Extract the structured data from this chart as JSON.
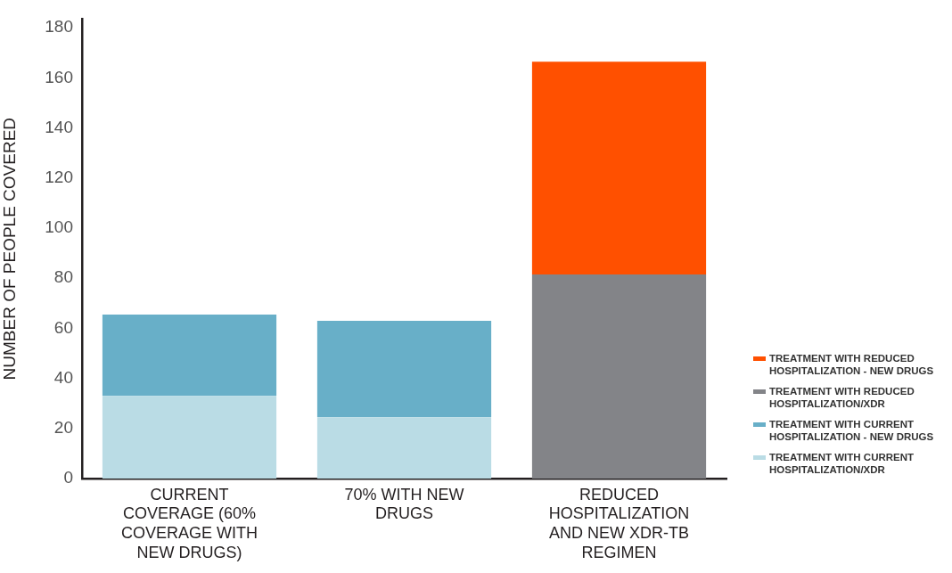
{
  "chart_data": {
    "type": "bar",
    "ylabel": "NUMBER OF PEOPLE COVERED",
    "categories": [
      "CURRENT COVERAGE (60% COVERAGE WITH NEW DRUGS)",
      "70% WITH NEW DRUGS",
      "REDUCED HOSPITALIZATION AND NEW XDR-TB REGIMEN"
    ],
    "series": [
      {
        "name": "TREATMENT WITH CURRENT HOSPITALIZATION/XDR",
        "color": "#badce5",
        "values": [
          33,
          24.5,
          null
        ]
      },
      {
        "name": "TREATMENT WITH CURRENT HOSPITALIZATION - NEW DRUGS",
        "color": "#68afc8",
        "values": [
          32.5,
          38.5,
          null
        ]
      },
      {
        "name": "TREATMENT WITH REDUCED HOSPITALIZATION/XDR",
        "color": "#838488",
        "values": [
          null,
          null,
          81.5
        ]
      },
      {
        "name": "TREATMENT WITH REDUCED HOSPITALIZATION - NEW DRUGS",
        "color": "#ff5000",
        "values": [
          null,
          null,
          85
        ]
      }
    ],
    "stacked": true,
    "ylim": [
      0,
      183.5
    ],
    "yticks": [
      0,
      20,
      40,
      60,
      80,
      100,
      120,
      140,
      160,
      180
    ],
    "legend": "bottom right"
  }
}
